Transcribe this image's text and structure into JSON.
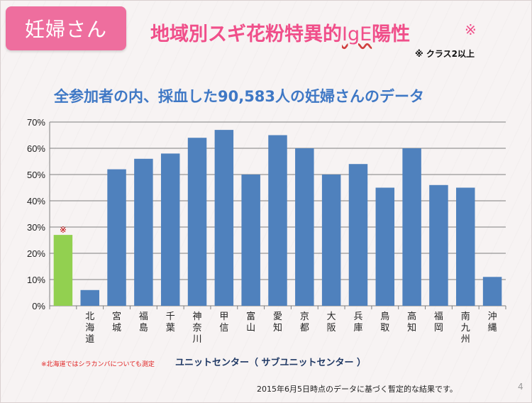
{
  "header": {
    "badge_label": "妊婦さん",
    "title_before": "地域別スギ花粉特異的",
    "title_ige": "IgE",
    "title_after": "陽性",
    "title_mark": "※",
    "note": "※ クラス2以上"
  },
  "subtitle": "全参加者の内、採血した90,583人の妊婦さんのデータ",
  "footnotes": {
    "left": "※北海道ではシラカンバについても測定",
    "center": "ユニットセンター（ サブユニットセンター ）",
    "bottom": "2015年6月5日時点のデータに基づく暫定的な結果です。",
    "page": "4"
  },
  "colors": {
    "badge": "#ee6e9e",
    "title": "#f04f8a",
    "subtitle": "#3f78c5",
    "bar": "#4f81bd",
    "highlight_bar": "#92d050",
    "marker": "#c00000"
  },
  "chart_data": {
    "type": "bar",
    "categories": [
      "",
      "北海道",
      "宮城",
      "福島",
      "千葉",
      "神奈川",
      "甲信",
      "富山",
      "愛知",
      "京都",
      "大阪",
      "兵庫",
      "鳥取",
      "高知",
      "福岡",
      "南九州",
      "沖縄"
    ],
    "values": [
      27,
      6,
      52,
      56,
      58,
      64,
      67,
      50,
      65,
      60,
      50,
      54,
      45,
      60,
      46,
      45,
      11
    ],
    "highlight_index": 0,
    "highlight_marker": "※",
    "ylim": [
      0,
      70
    ],
    "yticks": [
      "0%",
      "10%",
      "20%",
      "30%",
      "40%",
      "50%",
      "60%",
      "70%"
    ],
    "grid": true,
    "legend": "none"
  }
}
